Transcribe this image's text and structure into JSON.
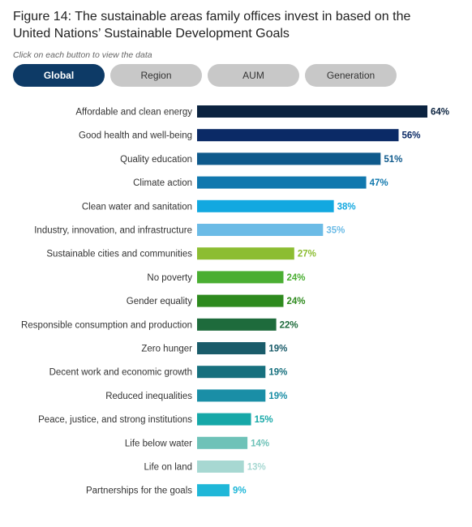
{
  "title": "Figure 14: The sustainable areas family offices invest in based on the United Nations’ Sustainable Development Goals",
  "subtitle": "Click on each button to view the data",
  "tabs": [
    {
      "label": "Global",
      "active": true
    },
    {
      "label": "Region",
      "active": false
    },
    {
      "label": "AUM",
      "active": false
    },
    {
      "label": "Generation",
      "active": false
    }
  ],
  "chart_data": {
    "type": "bar",
    "orientation": "horizontal",
    "categories": [
      "Affordable and clean energy",
      "Good health and well-being",
      "Quality education",
      "Climate action",
      "Clean water and sanitation",
      "Industry, innovation, and infrastructure",
      "Sustainable cities and communities",
      "No poverty",
      "Gender equality",
      "Responsible consumption and production",
      "Zero hunger",
      "Decent work and economic growth",
      "Reduced inequalities",
      "Peace, justice, and strong institutions",
      "Life below water",
      "Life on land",
      "Partnerships for the goals"
    ],
    "values": [
      64,
      56,
      51,
      47,
      38,
      35,
      27,
      24,
      24,
      22,
      19,
      19,
      19,
      15,
      14,
      13,
      9
    ],
    "value_labels": [
      "64%",
      "56%",
      "51%",
      "47%",
      "38%",
      "35%",
      "27%",
      "24%",
      "24%",
      "22%",
      "19%",
      "19%",
      "19%",
      "15%",
      "14%",
      "13%",
      "9%"
    ],
    "colors": [
      "#0b2340",
      "#0b2a66",
      "#0f5a8c",
      "#1178ae",
      "#12a8e0",
      "#6bbbe6",
      "#8cbd32",
      "#4aae32",
      "#2e8a1e",
      "#1e6b3c",
      "#1a5c6a",
      "#17707e",
      "#1a8ea6",
      "#16a8a8",
      "#6ec2b8",
      "#a7d8d2",
      "#1fb7d8"
    ],
    "xlim": [
      0,
      64
    ],
    "unit": "%"
  }
}
